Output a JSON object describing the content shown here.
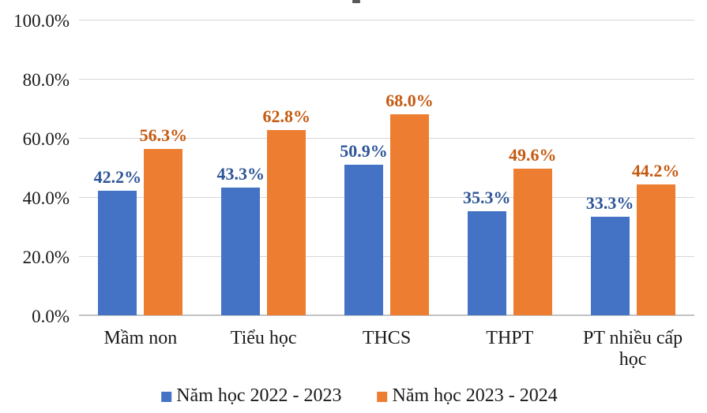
{
  "chart_data": {
    "type": "bar",
    "title_visible": false,
    "categories": [
      "Mầm non",
      "Tiểu học",
      "THCS",
      "THPT",
      "PT nhiều cấp học"
    ],
    "series": [
      {
        "name": "Năm học 2022 - 2023",
        "color": "#4472C4",
        "label_color": "#2E5597",
        "values": [
          42.2,
          43.3,
          50.9,
          35.3,
          33.3
        ],
        "data_labels": [
          "42.2%",
          "43.3%",
          "50.9%",
          "35.3%",
          "33.3%"
        ]
      },
      {
        "name": "Năm học 2023 - 2024",
        "color": "#ED7D31",
        "label_color": "#C55A11",
        "values": [
          56.3,
          62.8,
          68.0,
          49.6,
          44.2
        ],
        "data_labels": [
          "56.3%",
          "62.8%",
          "68.0%",
          "49.6%",
          "44.2%"
        ]
      }
    ],
    "y_ticks": [
      {
        "value": 0,
        "label": "0.0%"
      },
      {
        "value": 20,
        "label": "20.0%"
      },
      {
        "value": 40,
        "label": "40.0%"
      },
      {
        "value": 60,
        "label": "60.0%"
      },
      {
        "value": 80,
        "label": "80.0%"
      },
      {
        "value": 100,
        "label": "100.0%"
      }
    ],
    "ylim": [
      0,
      100
    ],
    "xlabel": "",
    "ylabel": "",
    "grid": true,
    "legend_position": "bottom"
  }
}
